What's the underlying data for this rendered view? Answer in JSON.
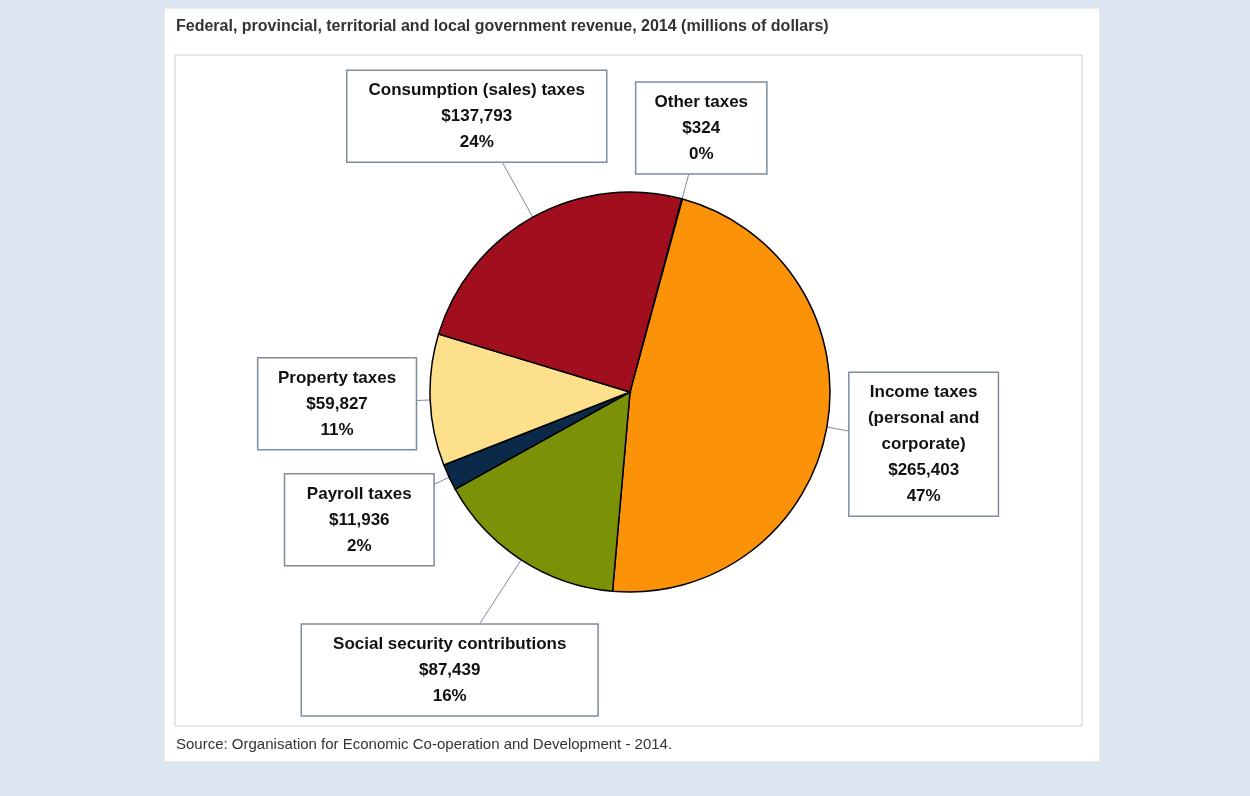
{
  "chart_data": {
    "type": "pie",
    "title": "Federal, provincial, territorial and local government revenue, 2014 (millions of dollars)",
    "categories": [
      "Other taxes",
      "Income taxes (personal and corporate)",
      "Social security contributions",
      "Payroll taxes",
      "Property taxes",
      "Consumption (sales) taxes"
    ],
    "values": [
      324,
      265403,
      87439,
      11936,
      59827,
      137793
    ],
    "colors": [
      "#000000",
      "#fb9208",
      "#7a9108",
      "#0b2a4a",
      "#fce08c",
      "#a10f1e"
    ],
    "value_labels": [
      "$324\n0%",
      "$265,403\n47%",
      "$87,439\n16%",
      "$11,936\n2%",
      "$59,827\n11%",
      "$137,793\n24%"
    ],
    "annotations": [
      "Source: Organisation for Economic Co-operation and Development - 2014."
    ]
  }
}
